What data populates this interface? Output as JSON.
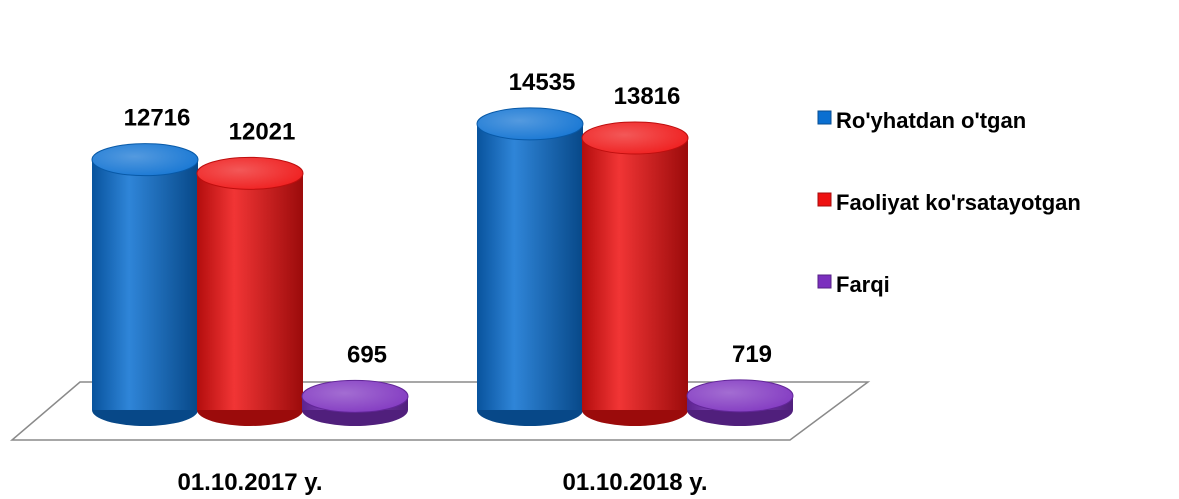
{
  "chart_data": {
    "type": "bar",
    "categories": [
      "01.10.2017 y.",
      "01.10.2018 y."
    ],
    "series": [
      {
        "name": "Ro'yhatdan o'tgan",
        "values": [
          12716,
          14535
        ],
        "color": "#0a6fd1"
      },
      {
        "name": "Faoliyat ko'rsatayotgan",
        "values": [
          12021,
          13816
        ],
        "color": "#ee1111"
      },
      {
        "name": "Farqi",
        "values": [
          695,
          719
        ],
        "color": "#7b2fbe"
      }
    ],
    "title": "",
    "xlabel": "",
    "ylabel": "",
    "ylim": [
      0,
      16000
    ],
    "grid": false,
    "legend": "right",
    "style": "3d-cylinder"
  }
}
